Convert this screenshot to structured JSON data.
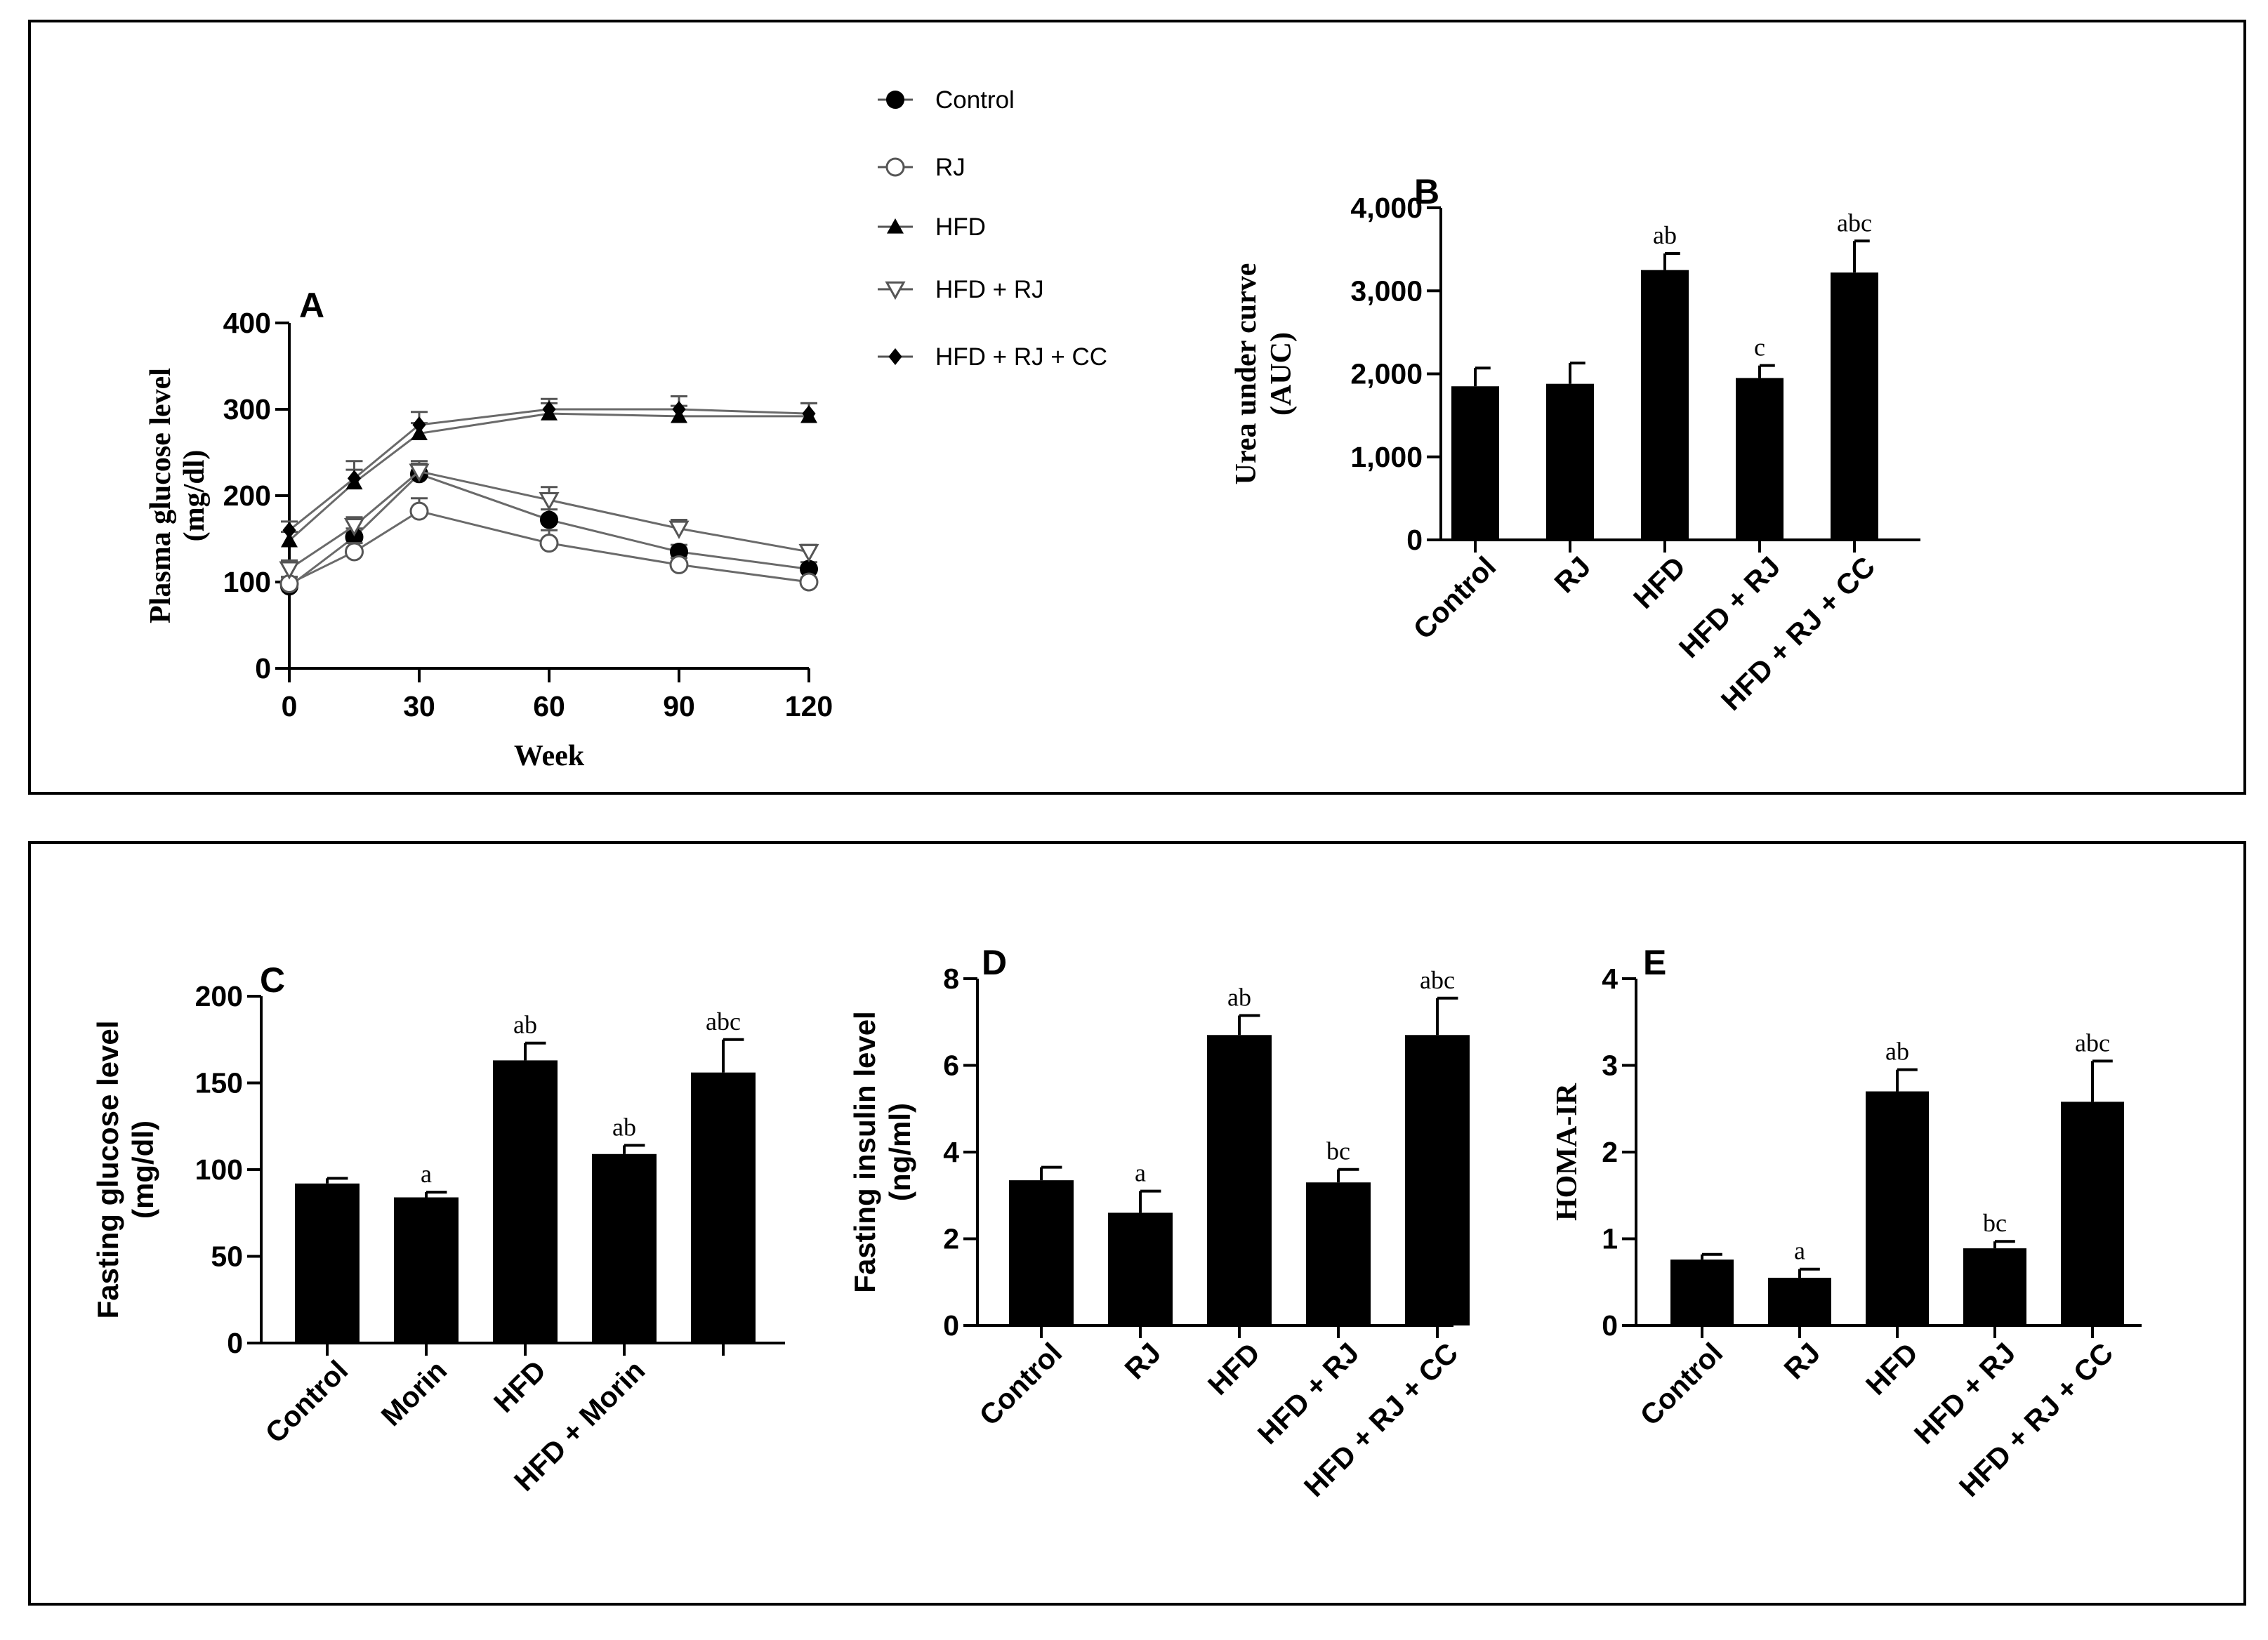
{
  "chart_data": [
    {
      "panel": "A",
      "type": "line",
      "xlabel": "Week",
      "ylabel": [
        "Plasma glucose level",
        "(mg/dl)"
      ],
      "xlim": [
        0,
        120
      ],
      "ylim": [
        0,
        400
      ],
      "xticks": [
        0,
        30,
        60,
        90,
        120
      ],
      "yticks": [
        0,
        100,
        200,
        300,
        400
      ],
      "x": [
        0,
        15,
        30,
        60,
        90,
        120
      ],
      "series": [
        {
          "name": "Control",
          "marker": "filled-circle",
          "values": [
            95,
            152,
            225,
            172,
            135,
            115
          ],
          "errors": [
            8,
            10,
            12,
            12,
            8,
            8
          ]
        },
        {
          "name": "RJ",
          "marker": "open-circle",
          "values": [
            98,
            135,
            182,
            145,
            120,
            100
          ],
          "errors": [
            8,
            10,
            15,
            15,
            8,
            5
          ]
        },
        {
          "name": "HFD",
          "marker": "filled-triangle",
          "values": [
            148,
            215,
            272,
            295,
            292,
            292
          ],
          "errors": [
            10,
            15,
            12,
            12,
            12,
            15
          ]
        },
        {
          "name": "HFD + RJ",
          "marker": "open-triangle-down",
          "values": [
            115,
            165,
            228,
            195,
            162,
            135
          ],
          "errors": [
            10,
            10,
            12,
            15,
            10,
            8
          ]
        },
        {
          "name": "HFD + RJ + CC",
          "marker": "filled-diamond",
          "values": [
            160,
            220,
            282,
            300,
            300,
            295
          ],
          "errors": [
            10,
            20,
            15,
            12,
            15,
            12
          ]
        }
      ]
    },
    {
      "panel": "B",
      "type": "bar",
      "ylabel": [
        "Urea under curve",
        "(AUC)"
      ],
      "categories": [
        "Control",
        "RJ",
        "HFD",
        "HFD + RJ",
        "HFD + RJ + CC"
      ],
      "values": [
        1850,
        1880,
        3250,
        1950,
        3220
      ],
      "errors": [
        220,
        250,
        200,
        150,
        380
      ],
      "sig_labels": [
        "",
        "",
        "ab",
        "c",
        "abc"
      ],
      "ylim": [
        0,
        4000
      ],
      "yticks": [
        0,
        1000,
        2000,
        3000,
        4000
      ],
      "ytick_labels": [
        "0",
        "1,000",
        "2,000",
        "3,000",
        "4,000"
      ]
    },
    {
      "panel": "C",
      "type": "bar",
      "ylabel": [
        "Fasting glucose level",
        "(mg/dl)"
      ],
      "categories": [
        "Control",
        "Morin",
        "HFD",
        "HFD + Morin",
        ""
      ],
      "values": [
        92,
        84,
        163,
        109,
        156
      ],
      "errors": [
        3,
        3,
        10,
        5,
        19
      ],
      "sig_labels": [
        "",
        "a",
        "ab",
        "ab",
        "abc"
      ],
      "ylim": [
        0,
        200
      ],
      "yticks": [
        0,
        50,
        100,
        150,
        200
      ]
    },
    {
      "panel": "D",
      "type": "bar",
      "ylabel": [
        "Fasting insulin level",
        "(ng/ml)"
      ],
      "categories": [
        "Control",
        "RJ",
        "HFD",
        "HFD + RJ",
        "HFD + RJ + CC"
      ],
      "values": [
        3.35,
        2.6,
        6.7,
        3.3,
        6.7
      ],
      "errors": [
        0.3,
        0.5,
        0.45,
        0.3,
        0.85
      ],
      "sig_labels": [
        "",
        "a",
        "ab",
        "bc",
        "abc"
      ],
      "ylim": [
        0,
        8
      ],
      "yticks": [
        0,
        2,
        4,
        6,
        8
      ]
    },
    {
      "panel": "E",
      "type": "bar",
      "ylabel": [
        "HOMA-IR"
      ],
      "categories": [
        "Control",
        "RJ",
        "HFD",
        "HFD + RJ",
        "HFD + RJ + CC"
      ],
      "values": [
        0.76,
        0.55,
        2.7,
        0.89,
        2.58
      ],
      "errors": [
        0.06,
        0.1,
        0.25,
        0.08,
        0.47
      ],
      "sig_labels": [
        "",
        "a",
        "ab",
        "bc",
        "abc"
      ],
      "ylim": [
        0,
        4
      ],
      "yticks": [
        0,
        1,
        2,
        3,
        4
      ]
    }
  ]
}
